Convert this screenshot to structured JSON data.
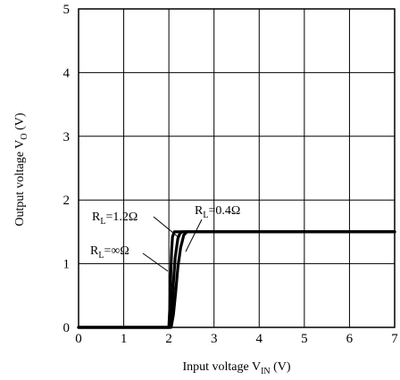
{
  "chart_data": {
    "type": "line",
    "xlabel": {
      "main": "Input voltage V",
      "sub": "IN",
      "unit": " (V)"
    },
    "ylabel": {
      "main": "Output voltage V",
      "sub": "O",
      "unit": " (V)"
    },
    "xlim": [
      0,
      7
    ],
    "ylim": [
      0,
      5
    ],
    "x_ticks": [
      "0",
      "1",
      "2",
      "3",
      "4",
      "5",
      "6",
      "7"
    ],
    "y_ticks": [
      "0",
      "1",
      "2",
      "3",
      "4",
      "5"
    ],
    "grid": true,
    "series": [
      {
        "name": "RL=∞Ω",
        "points": [
          [
            0,
            0
          ],
          [
            2.0,
            0
          ],
          [
            2.02,
            0.3
          ],
          [
            2.04,
            0.8
          ],
          [
            2.06,
            1.2
          ],
          [
            2.08,
            1.42
          ],
          [
            2.12,
            1.5
          ],
          [
            7,
            1.5
          ]
        ]
      },
      {
        "name": "RL=1.2Ω",
        "points": [
          [
            0,
            0
          ],
          [
            2.02,
            0
          ],
          [
            2.07,
            0.3
          ],
          [
            2.1,
            0.7
          ],
          [
            2.14,
            1.1
          ],
          [
            2.2,
            1.4
          ],
          [
            2.25,
            1.48
          ],
          [
            2.3,
            1.5
          ],
          [
            7,
            1.5
          ]
        ]
      },
      {
        "name": "RL=0.4Ω",
        "points": [
          [
            0,
            0
          ],
          [
            2.05,
            0
          ],
          [
            2.1,
            0.2
          ],
          [
            2.15,
            0.55
          ],
          [
            2.2,
            0.95
          ],
          [
            2.26,
            1.25
          ],
          [
            2.33,
            1.45
          ],
          [
            2.4,
            1.5
          ],
          [
            7,
            1.5
          ]
        ]
      }
    ],
    "annotations": [
      {
        "main": "R",
        "sub": "L",
        "rest": "=1.2Ω"
      },
      {
        "main": "R",
        "sub": "L",
        "rest": "=0.4Ω"
      },
      {
        "main": "R",
        "sub": "L",
        "rest": "=∞Ω"
      }
    ]
  }
}
